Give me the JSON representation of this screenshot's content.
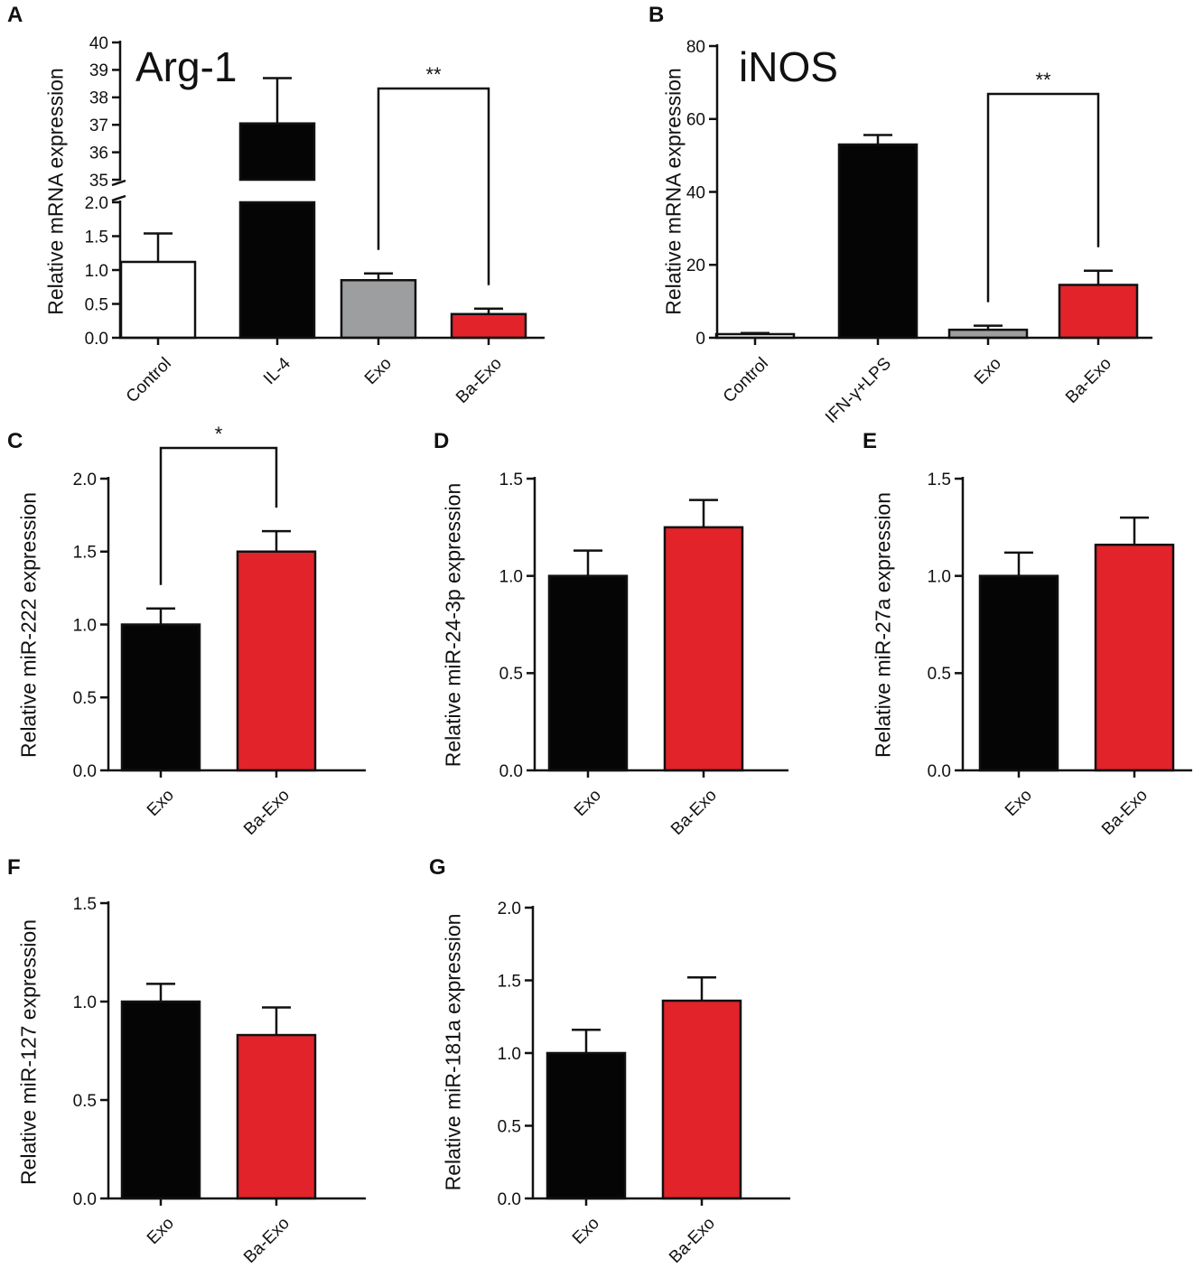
{
  "figure": {
    "page_width": 1322,
    "page_height": 1404
  },
  "chart_data": [
    {
      "panel": "A",
      "type": "bar",
      "title": "Arg-1",
      "ylabel": "Relative mRNA expression",
      "xlabel": "",
      "categories": [
        "Control",
        "IL-4",
        "Exo",
        "Ba-Exo"
      ],
      "values": [
        1.12,
        37.05,
        0.85,
        0.35
      ],
      "errors": [
        0.42,
        1.65,
        0.1,
        0.08
      ],
      "colors": [
        "#ffffff",
        "#050505",
        "#9d9ea0",
        "#e2232a"
      ],
      "axis_break": {
        "lower": [
          0,
          2.0
        ],
        "upper": [
          35,
          40
        ]
      },
      "yticks_lower": [
        "0.0",
        "0.5",
        "1.0",
        "1.5",
        "2.0"
      ],
      "yticks_upper": [
        "35",
        "36",
        "37",
        "38",
        "39",
        "40"
      ],
      "significance": [
        {
          "from": 2,
          "to": 3,
          "label": "**"
        }
      ]
    },
    {
      "panel": "B",
      "type": "bar",
      "title": "iNOS",
      "ylabel": "Relative mRNA expression",
      "xlabel": "",
      "categories": [
        "Control",
        "IFN-γ+LPS",
        "Exo",
        "Ba-Exo"
      ],
      "values": [
        1.0,
        53.0,
        2.2,
        14.5
      ],
      "errors": [
        0.3,
        2.6,
        1.1,
        3.9
      ],
      "colors": [
        "#ffffff",
        "#050505",
        "#9d9ea0",
        "#e2232a"
      ],
      "ylim": [
        0,
        80
      ],
      "yticks": [
        "0",
        "20",
        "40",
        "60",
        "80"
      ],
      "significance": [
        {
          "from": 2,
          "to": 3,
          "label": "**"
        }
      ]
    },
    {
      "panel": "C",
      "type": "bar",
      "ylabel": "Relative miR-222 expression",
      "xlabel": "",
      "categories": [
        "Exo",
        "Ba-Exo"
      ],
      "values": [
        1.0,
        1.5
      ],
      "errors": [
        0.11,
        0.14
      ],
      "colors": [
        "#050505",
        "#e2232a"
      ],
      "ylim": [
        0,
        2.0
      ],
      "yticks": [
        "0.0",
        "0.5",
        "1.0",
        "1.5",
        "2.0"
      ],
      "significance": [
        {
          "from": 0,
          "to": 1,
          "label": "*"
        }
      ]
    },
    {
      "panel": "D",
      "type": "bar",
      "ylabel": "Relative miR-24-3p expression",
      "xlabel": "",
      "categories": [
        "Exo",
        "Ba-Exo"
      ],
      "values": [
        1.0,
        1.25
      ],
      "errors": [
        0.13,
        0.14
      ],
      "colors": [
        "#050505",
        "#e2232a"
      ],
      "ylim": [
        0,
        1.5
      ],
      "yticks": [
        "0.0",
        "0.5",
        "1.0",
        "1.5"
      ],
      "significance": []
    },
    {
      "panel": "E",
      "type": "bar",
      "ylabel": "Relative miR-27a expression",
      "xlabel": "",
      "categories": [
        "Exo",
        "Ba-Exo"
      ],
      "values": [
        1.0,
        1.16
      ],
      "errors": [
        0.12,
        0.14
      ],
      "colors": [
        "#050505",
        "#e2232a"
      ],
      "ylim": [
        0,
        1.5
      ],
      "yticks": [
        "0.0",
        "0.5",
        "1.0",
        "1.5"
      ],
      "significance": []
    },
    {
      "panel": "F",
      "type": "bar",
      "ylabel": "Relative miR-127 expression",
      "xlabel": "",
      "categories": [
        "Exo",
        "Ba-Exo"
      ],
      "values": [
        1.0,
        0.83
      ],
      "errors": [
        0.09,
        0.14
      ],
      "colors": [
        "#050505",
        "#e2232a"
      ],
      "ylim": [
        0,
        1.5
      ],
      "yticks": [
        "0.0",
        "0.5",
        "1.0",
        "1.5"
      ],
      "significance": []
    },
    {
      "panel": "G",
      "type": "bar",
      "ylabel": "Relative miR-181a expression",
      "xlabel": "",
      "categories": [
        "Exo",
        "Ba-Exo"
      ],
      "values": [
        1.0,
        1.36
      ],
      "errors": [
        0.16,
        0.16
      ],
      "colors": [
        "#050505",
        "#e2232a"
      ],
      "ylim": [
        0,
        2.0
      ],
      "yticks": [
        "0.0",
        "0.5",
        "1.0",
        "1.5",
        "2.0"
      ],
      "significance": []
    }
  ]
}
